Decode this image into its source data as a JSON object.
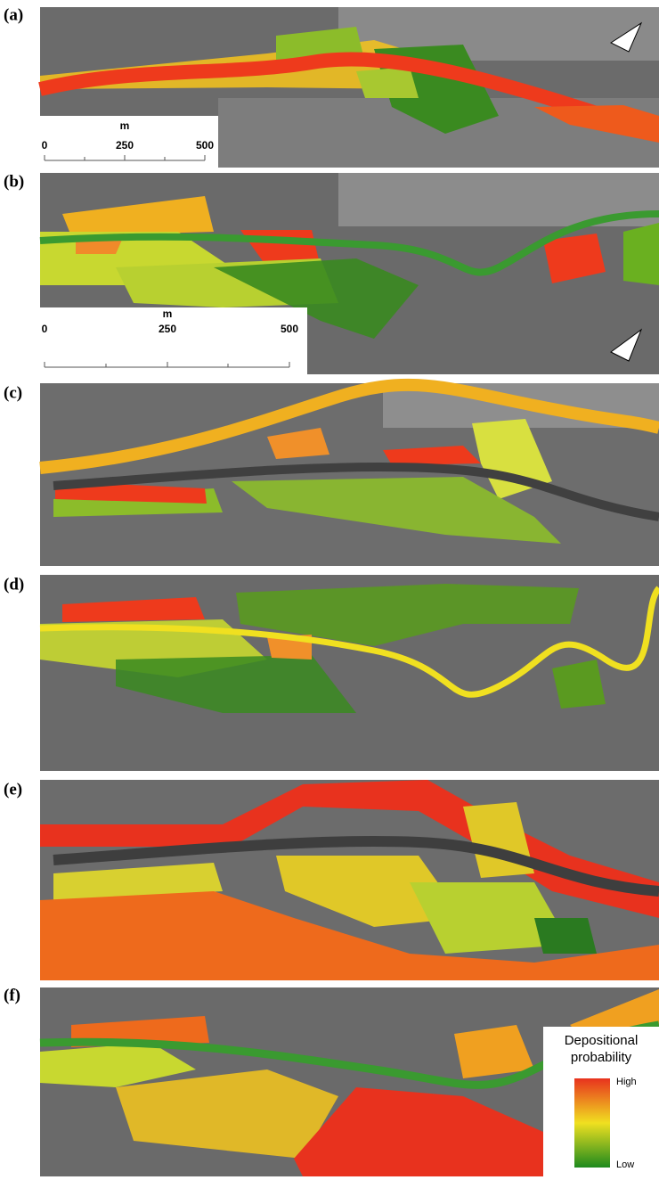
{
  "panels": [
    {
      "label": "(a)"
    },
    {
      "label": "(b)"
    },
    {
      "label": "(c)"
    },
    {
      "label": "(d)"
    },
    {
      "label": "(e)"
    },
    {
      "label": "(f)"
    }
  ],
  "scale_bars": [
    {
      "unit": "m",
      "ticks": [
        0,
        250,
        500
      ]
    },
    {
      "unit": "m",
      "ticks": [
        0,
        250,
        500
      ]
    }
  ],
  "legend": {
    "title": [
      "Depositional",
      "probability"
    ],
    "high": "High",
    "low": "Low"
  }
}
